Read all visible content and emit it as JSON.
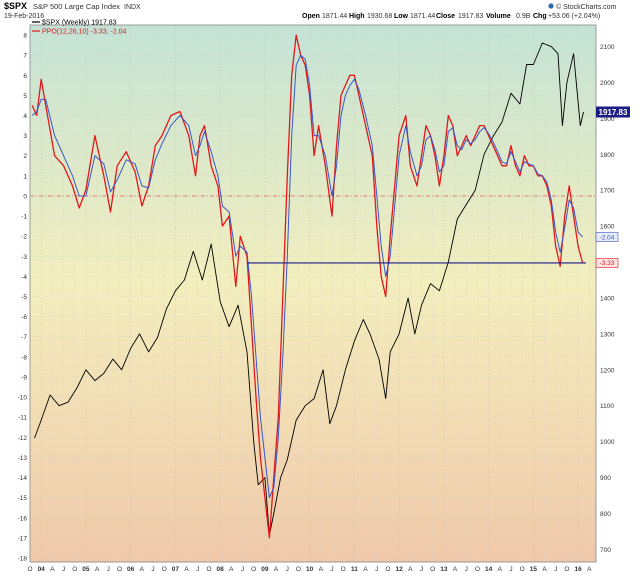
{
  "header": {
    "symbol": "$SPX",
    "description": "S&P 500 Large Cap Index",
    "exchange": "INDX",
    "date": "19-Feb-2016",
    "open_label": "Open",
    "open_value": "1871.44",
    "high_label": "High",
    "high_value": "1930.68",
    "low_label": "Low",
    "low_value": "1871.44",
    "close_label": "Close",
    "close_value": "1917.83",
    "volume_label": "Volume",
    "volume_value": "0.9B",
    "chg_label": "Chg",
    "chg_value": "+53.06 (+2.04%)",
    "attribution": "© StockCharts.com"
  },
  "legend": {
    "spx_label": "$SPX (Weekly) 1917.83",
    "ppo_label": "PPO(12,26,10) -3.33, -2.04"
  },
  "colors": {
    "spx": "#000000",
    "ppo": "#e0191b",
    "signal": "#3a56c8",
    "support": "#1a1a8a",
    "zero": "#e07070",
    "bg_top": "#c4e3d6",
    "bg_mid": "#f3eebd",
    "bg_bottom": "#f0c9aa",
    "price_badge": "#1b1d82"
  },
  "badges": {
    "price": "1917.83",
    "signal": "-2.04",
    "ppo": "-3.33"
  },
  "chart_data": {
    "type": "line",
    "left_axis": {
      "ticks": [
        8,
        7,
        6,
        5,
        4,
        3,
        2,
        1,
        0,
        -1,
        -2,
        -3,
        -4,
        -5,
        -6,
        -7,
        -8,
        -9,
        -10,
        -11,
        -12,
        -13,
        -14,
        -15,
        -16,
        -17,
        -18
      ],
      "range": [
        -18.2,
        8.5
      ]
    },
    "right_axis": {
      "ticks": [
        2100,
        2000,
        1900,
        1800,
        1700,
        1600,
        1500,
        1400,
        1300,
        1200,
        1100,
        1000,
        900,
        800,
        700
      ],
      "range": [
        665,
        2160
      ]
    },
    "x_axis": {
      "ticks": [
        "O",
        "04",
        "A",
        "J",
        "O",
        "05",
        "A",
        "J",
        "O",
        "06",
        "A",
        "J",
        "O",
        "07",
        "A",
        "J",
        "O",
        "08",
        "A",
        "J",
        "O",
        "09",
        "A",
        "J",
        "O",
        "10",
        "A",
        "J",
        "O",
        "11",
        "A",
        "J",
        "O",
        "12",
        "A",
        "J",
        "O",
        "13",
        "A",
        "J",
        "O",
        "14",
        "A",
        "J",
        "O",
        "15",
        "A",
        "J",
        "O",
        "16",
        "A"
      ],
      "bold_ticks": [
        "04",
        "05",
        "06",
        "07",
        "08",
        "09",
        "10",
        "11",
        "12",
        "13",
        "14",
        "15",
        "16"
      ],
      "start": 2003.75,
      "end": 2016.4
    },
    "support_level": -3.33,
    "support_start": 2008.6,
    "zero_line": 0,
    "series": [
      {
        "name": "$SPX (Weekly) 1917.83",
        "axis": "right",
        "x": [
          2003.85,
          2004.0,
          2004.2,
          2004.4,
          2004.6,
          2004.8,
          2005.0,
          2005.2,
          2005.4,
          2005.6,
          2005.8,
          2006.0,
          2006.2,
          2006.4,
          2006.6,
          2006.8,
          2007.0,
          2007.2,
          2007.4,
          2007.6,
          2007.8,
          2008.0,
          2008.2,
          2008.4,
          2008.6,
          2008.75,
          2008.85,
          2009.0,
          2009.1,
          2009.2,
          2009.35,
          2009.5,
          2009.7,
          2009.9,
          2010.1,
          2010.3,
          2010.45,
          2010.6,
          2010.8,
          2011.0,
          2011.2,
          2011.35,
          2011.55,
          2011.7,
          2011.8,
          2012.0,
          2012.2,
          2012.35,
          2012.5,
          2012.7,
          2012.9,
          2013.1,
          2013.3,
          2013.5,
          2013.7,
          2013.9,
          2014.1,
          2014.3,
          2014.5,
          2014.7,
          2014.85,
          2015.0,
          2015.2,
          2015.4,
          2015.55,
          2015.65,
          2015.75,
          2015.9,
          2016.05,
          2016.12
        ],
        "values": [
          1010,
          1060,
          1130,
          1100,
          1110,
          1150,
          1200,
          1170,
          1190,
          1230,
          1200,
          1260,
          1300,
          1250,
          1290,
          1370,
          1420,
          1450,
          1530,
          1450,
          1550,
          1390,
          1320,
          1380,
          1250,
          1000,
          880,
          900,
          740,
          800,
          900,
          950,
          1060,
          1100,
          1120,
          1200,
          1050,
          1100,
          1200,
          1280,
          1340,
          1300,
          1230,
          1120,
          1250,
          1300,
          1400,
          1300,
          1380,
          1440,
          1420,
          1500,
          1620,
          1660,
          1700,
          1800,
          1850,
          1890,
          1970,
          1940,
          2050,
          2050,
          2110,
          2100,
          2080,
          1880,
          2000,
          2080,
          1880,
          1917.83
        ]
      },
      {
        "name": "PPO(12,26,10) -3.33",
        "axis": "left",
        "x": [
          2003.8,
          2003.9,
          2004.0,
          2004.1,
          2004.3,
          2004.5,
          2004.7,
          2004.85,
          2005.0,
          2005.2,
          2005.4,
          2005.55,
          2005.7,
          2005.9,
          2006.1,
          2006.25,
          2006.4,
          2006.55,
          2006.7,
          2006.9,
          2007.1,
          2007.3,
          2007.45,
          2007.55,
          2007.65,
          2007.8,
          2007.95,
          2008.05,
          2008.2,
          2008.35,
          2008.45,
          2008.6,
          2008.7,
          2008.8,
          2008.9,
          2009.0,
          2009.1,
          2009.2,
          2009.3,
          2009.4,
          2009.5,
          2009.6,
          2009.7,
          2009.8,
          2009.9,
          2010.0,
          2010.1,
          2010.2,
          2010.35,
          2010.5,
          2010.6,
          2010.7,
          2010.8,
          2010.9,
          2011.0,
          2011.1,
          2011.25,
          2011.4,
          2011.5,
          2011.6,
          2011.7,
          2011.8,
          2011.9,
          2012.0,
          2012.15,
          2012.25,
          2012.4,
          2012.5,
          2012.6,
          2012.7,
          2012.8,
          2012.9,
          2013.0,
          2013.1,
          2013.2,
          2013.3,
          2013.4,
          2013.5,
          2013.6,
          2013.7,
          2013.8,
          2013.9,
          2014.0,
          2014.1,
          2014.2,
          2014.3,
          2014.4,
          2014.5,
          2014.6,
          2014.7,
          2014.8,
          2014.9,
          2015.0,
          2015.1,
          2015.2,
          2015.3,
          2015.4,
          2015.5,
          2015.6,
          2015.7,
          2015.8,
          2015.9,
          2016.0,
          2016.1
        ],
        "values": [
          4.5,
          4.0,
          5.8,
          4.5,
          2.0,
          1.5,
          0.5,
          -0.6,
          0.3,
          3.0,
          1.0,
          -0.8,
          1.5,
          2.2,
          1.2,
          -0.5,
          0.5,
          2.5,
          3.0,
          4.0,
          4.2,
          3.0,
          1.0,
          3.0,
          3.5,
          1.5,
          0.5,
          -1.5,
          -1.0,
          -4.5,
          -2.0,
          -3.0,
          -6.5,
          -10.0,
          -13.0,
          -15.0,
          -17.0,
          -14.0,
          -11.0,
          -5.0,
          1.0,
          6.0,
          8.0,
          7.0,
          6.5,
          5.0,
          2.0,
          3.5,
          1.5,
          -1.0,
          2.5,
          5.0,
          5.5,
          6.0,
          6.0,
          5.0,
          3.5,
          2.0,
          -1.5,
          -4.0,
          -5.0,
          -2.0,
          0.5,
          3.0,
          4.0,
          1.5,
          0.5,
          2.0,
          3.5,
          3.0,
          2.0,
          0.5,
          2.0,
          4.0,
          3.5,
          2.0,
          2.5,
          3.0,
          2.5,
          3.0,
          3.5,
          3.5,
          3.0,
          2.5,
          2.0,
          1.5,
          1.5,
          2.5,
          1.5,
          1.0,
          2.0,
          1.5,
          1.5,
          1.0,
          1.0,
          0.5,
          -0.5,
          -2.5,
          -3.5,
          -1.0,
          0.5,
          -1.0,
          -2.5,
          -3.33
        ]
      },
      {
        "name": "signal -2.04",
        "axis": "left",
        "x": [
          2003.8,
          2003.9,
          2004.0,
          2004.1,
          2004.3,
          2004.5,
          2004.7,
          2004.85,
          2005.0,
          2005.2,
          2005.4,
          2005.55,
          2005.7,
          2005.9,
          2006.1,
          2006.25,
          2006.4,
          2006.55,
          2006.7,
          2006.9,
          2007.1,
          2007.3,
          2007.45,
          2007.55,
          2007.65,
          2007.8,
          2007.95,
          2008.05,
          2008.2,
          2008.35,
          2008.45,
          2008.6,
          2008.7,
          2008.8,
          2008.9,
          2009.0,
          2009.1,
          2009.2,
          2009.3,
          2009.4,
          2009.5,
          2009.6,
          2009.7,
          2009.8,
          2009.9,
          2010.0,
          2010.1,
          2010.2,
          2010.35,
          2010.5,
          2010.6,
          2010.7,
          2010.8,
          2010.9,
          2011.0,
          2011.1,
          2011.25,
          2011.4,
          2011.5,
          2011.6,
          2011.7,
          2011.8,
          2011.9,
          2012.0,
          2012.15,
          2012.25,
          2012.4,
          2012.5,
          2012.6,
          2012.7,
          2012.8,
          2012.9,
          2013.0,
          2013.1,
          2013.2,
          2013.3,
          2013.4,
          2013.5,
          2013.6,
          2013.7,
          2013.8,
          2013.9,
          2014.0,
          2014.1,
          2014.2,
          2014.3,
          2014.4,
          2014.5,
          2014.6,
          2014.7,
          2014.8,
          2014.9,
          2015.0,
          2015.1,
          2015.2,
          2015.3,
          2015.4,
          2015.5,
          2015.6,
          2015.7,
          2015.8,
          2015.9,
          2016.0,
          2016.1
        ],
        "values": [
          4.0,
          4.2,
          4.8,
          4.8,
          3.0,
          2.0,
          1.0,
          0.0,
          0.0,
          2.0,
          1.6,
          0.2,
          0.8,
          1.8,
          1.6,
          0.5,
          0.4,
          1.8,
          2.6,
          3.5,
          4.0,
          3.5,
          2.0,
          2.5,
          3.2,
          2.2,
          1.0,
          -0.5,
          -0.8,
          -3.0,
          -2.5,
          -2.8,
          -5.0,
          -8.0,
          -11.0,
          -13.0,
          -15.0,
          -14.5,
          -12.0,
          -8.0,
          -3.0,
          3.0,
          6.5,
          7.0,
          6.8,
          5.5,
          3.0,
          3.0,
          2.0,
          0.0,
          1.5,
          4.0,
          5.0,
          5.5,
          5.8,
          5.3,
          4.0,
          2.5,
          0.0,
          -2.5,
          -4.0,
          -3.0,
          -0.5,
          2.0,
          3.5,
          2.2,
          1.0,
          1.5,
          2.8,
          3.0,
          2.3,
          1.2,
          1.5,
          3.2,
          3.4,
          2.5,
          2.3,
          2.8,
          2.6,
          2.8,
          3.2,
          3.4,
          3.1,
          2.7,
          2.2,
          1.7,
          1.6,
          2.2,
          1.7,
          1.2,
          1.7,
          1.6,
          1.5,
          1.1,
          1.0,
          0.7,
          -0.2,
          -1.8,
          -2.8,
          -1.6,
          -0.2,
          -0.6,
          -1.8,
          -2.04
        ]
      }
    ]
  }
}
